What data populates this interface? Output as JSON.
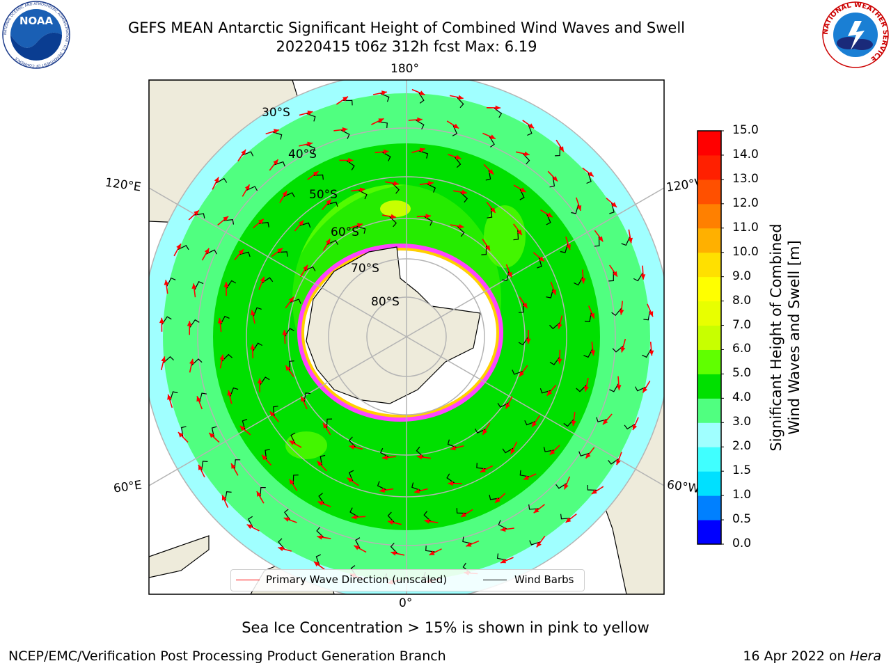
{
  "header": {
    "title_line1": "GEFS MEAN Antarctic Significant Height of Combined Wind Waves and Swell",
    "title_line2": "20220415 t06z 312h fcst   Max: 6.19"
  },
  "logos": {
    "noaa_text": "NOAA",
    "noaa_ring_text": "NATIONAL OCEANIC AND ATMOSPHERIC ADMINISTRATION · U.S. DEPARTMENT OF COMMERCE",
    "nws_ring_text": "NATIONAL WEATHER SERVICE"
  },
  "map": {
    "projection": "south-polar-stereographic",
    "longitude_labels": {
      "top": "180°",
      "bottom": "0°",
      "left_upper": "120°E",
      "left_lower": "60°E",
      "right_upper": "120°W",
      "right_lower": "60°W"
    },
    "latitude_labels": [
      "30°S",
      "40°S",
      "50°S",
      "60°S",
      "70°S",
      "80°S"
    ],
    "colors": {
      "land": "#eeebdb",
      "ocean": "#ffffff",
      "ice": "#ff44ff",
      "arrow": "#ff0000",
      "barb": "#000000",
      "grid": "#b4b4b4"
    }
  },
  "colorbar": {
    "label_line1": "Significant Height of Combined",
    "label_line2": "Wind Waves and Swell [m]",
    "ticks": [
      "0.0",
      "0.5",
      "1.0",
      "1.5",
      "2.0",
      "3.0",
      "4.0",
      "5.0",
      "6.0",
      "7.0",
      "8.0",
      "9.0",
      "10.0",
      "11.0",
      "12.0",
      "13.0",
      "14.0",
      "15.0"
    ],
    "colors": [
      "#0000ff",
      "#0080ff",
      "#00e0ff",
      "#40ffff",
      "#a0ffff",
      "#50ff80",
      "#00e000",
      "#60ff00",
      "#c8ff00",
      "#e8ff00",
      "#ffff00",
      "#ffe000",
      "#ffb000",
      "#ff8000",
      "#ff5000",
      "#ff2000",
      "#ff0000"
    ]
  },
  "legend": {
    "primary_wave_label": "Primary Wave Direction (unscaled)",
    "wind_barbs_label": "Wind Barbs"
  },
  "footer": {
    "note": "Sea Ice Concentration > 15% is shown in pink to yellow",
    "credit": "NCEP/EMC/Verification Post Processing Product Generation Branch",
    "date": "16 Apr 2022 on ",
    "host": "Hera"
  }
}
